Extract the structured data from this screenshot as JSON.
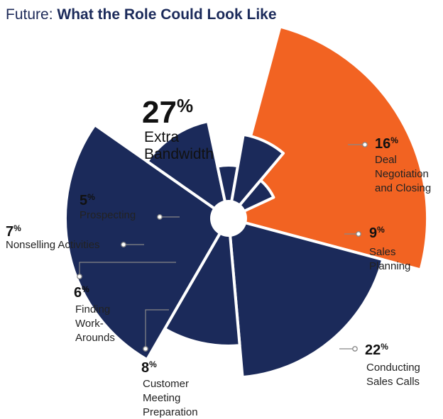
{
  "title": {
    "prefix": "Future:",
    "bold": "What the Role Could Look Like"
  },
  "colors": {
    "navy": "#1b2a5a",
    "orange": "#f26322",
    "connector": "#888888"
  },
  "chart_data": {
    "type": "pie",
    "variant": "polar-area (radius varies by slice)",
    "unit": "%",
    "slices": [
      {
        "value": 27,
        "label": [
          "Extra",
          "Bandwidth"
        ],
        "color": "#f26322",
        "highlight": true
      },
      {
        "value": 16,
        "label": [
          "Deal",
          "Negotiation",
          "and Closing"
        ],
        "color": "#1b2a5a"
      },
      {
        "value": 9,
        "label": [
          "Sales",
          "Planning"
        ],
        "color": "#1b2a5a"
      },
      {
        "value": 22,
        "label": [
          "Conducting",
          "Sales Calls"
        ],
        "color": "#1b2a5a"
      },
      {
        "value": 8,
        "label": [
          "Customer",
          "Meeting",
          "Preparation"
        ],
        "color": "#1b2a5a"
      },
      {
        "value": 6,
        "label": [
          "Finding",
          "Work-",
          "Arounds"
        ],
        "color": "#1b2a5a"
      },
      {
        "value": 7,
        "label": [
          "Nonselling Activities"
        ],
        "color": "#1b2a5a"
      },
      {
        "value": 5,
        "label": [
          "Prospecting"
        ],
        "color": "#1b2a5a"
      }
    ]
  }
}
